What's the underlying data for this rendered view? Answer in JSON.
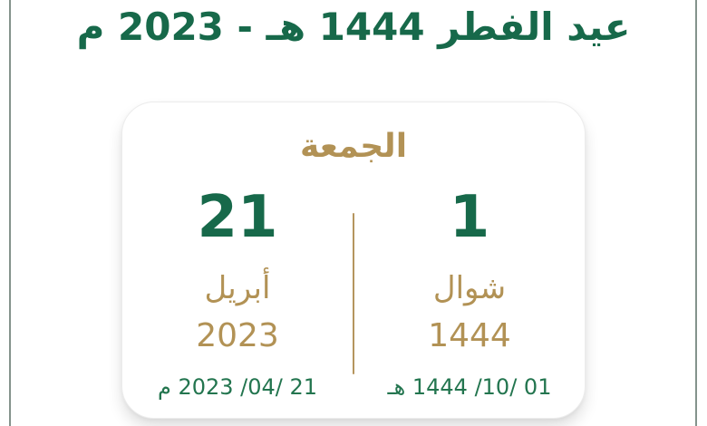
{
  "title": "عيد الفطر 1444 هـ - 2023 م",
  "card": {
    "day_name": "الجمعة",
    "hijri": {
      "day": "1",
      "month": "شوال",
      "year": "1444",
      "full_date": "01 /10/ 1444 هـ"
    },
    "gregorian": {
      "day": "21",
      "month": "أبريل",
      "year": "2023",
      "full_date": "21 /04/ 2023 م"
    }
  },
  "colors": {
    "title_green": "#17694a",
    "number_green": "#17694a",
    "date_green": "#23754f",
    "gold": "#b29255",
    "divider_gold": "#b5955e",
    "edge_line": "#6f8078",
    "card_border": "#ececec",
    "background": "#ffffff"
  }
}
